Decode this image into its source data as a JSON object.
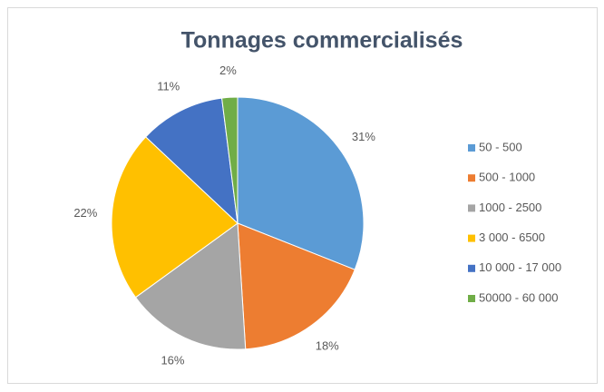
{
  "chart_data": {
    "type": "pie",
    "title": "Tonnages commercialisés",
    "categories": [
      "50 - 500",
      "500 - 1000",
      "1000 - 2500",
      "3 000 - 6500",
      "10 000 - 17 000",
      "50000 - 60 000"
    ],
    "values": [
      31,
      18,
      16,
      22,
      11,
      2
    ],
    "value_labels": [
      "31%",
      "18%",
      "16%",
      "22%",
      "11%",
      "2%"
    ],
    "colors": [
      "#5b9bd5",
      "#ed7d31",
      "#a5a5a5",
      "#ffc000",
      "#4472c4",
      "#70ad47"
    ],
    "legend": "right"
  }
}
